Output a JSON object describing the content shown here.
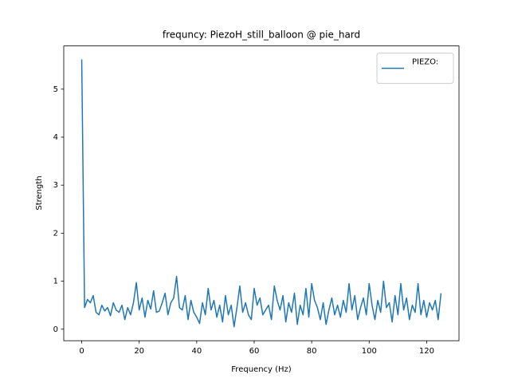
{
  "chart_data": {
    "type": "line",
    "title": "frequncy: PiezoH_still_balloon @ pie_hard",
    "xlabel": "Frequency (Hz)",
    "ylabel": "Strength",
    "xlim": [
      -6.25,
      131.25
    ],
    "ylim": [
      -0.24,
      5.9
    ],
    "xticks": [
      0,
      20,
      40,
      60,
      80,
      100,
      120
    ],
    "yticks": [
      0,
      1,
      2,
      3,
      4,
      5
    ],
    "legend": "upper right",
    "x": [
      0,
      1,
      2,
      3,
      4,
      5,
      6,
      7,
      8,
      9,
      10,
      11,
      12,
      13,
      14,
      15,
      16,
      17,
      18,
      19,
      20,
      21,
      22,
      23,
      24,
      25,
      26,
      27,
      28,
      29,
      30,
      31,
      32,
      33,
      34,
      35,
      36,
      37,
      38,
      39,
      40,
      41,
      42,
      43,
      44,
      45,
      46,
      47,
      48,
      49,
      50,
      51,
      52,
      53,
      54,
      55,
      56,
      57,
      58,
      59,
      60,
      61,
      62,
      63,
      64,
      65,
      66,
      67,
      68,
      69,
      70,
      71,
      72,
      73,
      74,
      75,
      76,
      77,
      78,
      79,
      80,
      81,
      82,
      83,
      84,
      85,
      86,
      87,
      88,
      89,
      90,
      91,
      92,
      93,
      94,
      95,
      96,
      97,
      98,
      99,
      100,
      101,
      102,
      103,
      104,
      105,
      106,
      107,
      108,
      109,
      110,
      111,
      112,
      113,
      114,
      115,
      116,
      117,
      118,
      119,
      120,
      121,
      122,
      123,
      124,
      125
    ],
    "series": [
      {
        "name": "PIEZO:",
        "color": "#1f77b4",
        "values": [
          5.62,
          0.45,
          0.62,
          0.55,
          0.7,
          0.35,
          0.3,
          0.5,
          0.38,
          0.45,
          0.28,
          0.55,
          0.4,
          0.35,
          0.5,
          0.2,
          0.45,
          0.3,
          0.55,
          0.97,
          0.4,
          0.65,
          0.25,
          0.6,
          0.42,
          0.8,
          0.35,
          0.38,
          0.55,
          0.75,
          0.3,
          0.55,
          0.65,
          1.1,
          0.45,
          0.4,
          0.7,
          0.2,
          0.6,
          0.35,
          0.25,
          0.12,
          0.55,
          0.3,
          0.85,
          0.4,
          0.6,
          0.25,
          0.5,
          0.15,
          0.7,
          0.3,
          0.5,
          0.05,
          0.45,
          0.9,
          0.35,
          0.55,
          0.3,
          0.2,
          0.85,
          0.5,
          0.65,
          0.3,
          0.4,
          0.5,
          0.2,
          0.9,
          0.6,
          0.4,
          0.7,
          0.15,
          0.55,
          0.35,
          0.75,
          0.1,
          0.5,
          0.3,
          0.85,
          0.25,
          0.95,
          0.6,
          0.45,
          0.2,
          0.55,
          0.1,
          0.4,
          0.65,
          0.3,
          0.5,
          0.25,
          0.6,
          0.35,
          0.95,
          0.4,
          0.7,
          0.2,
          0.45,
          0.65,
          0.3,
          0.95,
          0.5,
          0.2,
          0.6,
          0.35,
          1.0,
          0.45,
          0.55,
          0.15,
          0.7,
          0.3,
          0.95,
          0.4,
          0.65,
          0.2,
          0.5,
          0.35,
          0.95,
          0.3,
          0.6,
          0.25,
          0.55,
          0.4,
          0.6,
          0.2,
          0.75
        ]
      }
    ]
  }
}
